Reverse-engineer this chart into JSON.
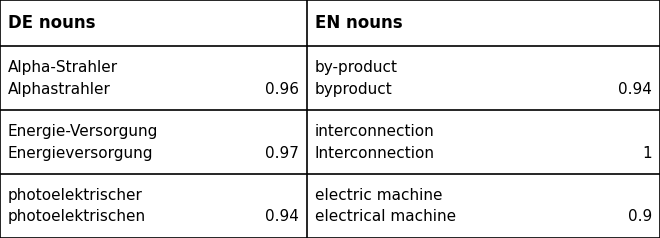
{
  "col_header": [
    "DE nouns",
    "EN nouns"
  ],
  "rows": [
    {
      "de_word1": "Alpha-Strahler",
      "de_word2": "Alphastrahler",
      "de_score": "0.96",
      "en_word1": "by-product",
      "en_word2": "byproduct",
      "en_score": "0.94"
    },
    {
      "de_word1": "Energie-Versorgung",
      "de_word2": "Energieversorgung",
      "de_score": "0.97",
      "en_word1": "interconnection",
      "en_word2": "Interconnection",
      "en_score": "1"
    },
    {
      "de_word1": "photoelektrischer",
      "de_word2": "photoelektrischen",
      "de_score": "0.94",
      "en_word1": "electric machine",
      "en_word2": "electrical machine",
      "en_score": "0.9"
    }
  ],
  "bg_color": "#ffffff",
  "line_color": "#000000",
  "text_color": "#000000",
  "font_size": 11.0,
  "header_font_size": 12.0,
  "col_split": 0.465,
  "figsize": [
    6.6,
    2.38
  ],
  "dpi": 100
}
